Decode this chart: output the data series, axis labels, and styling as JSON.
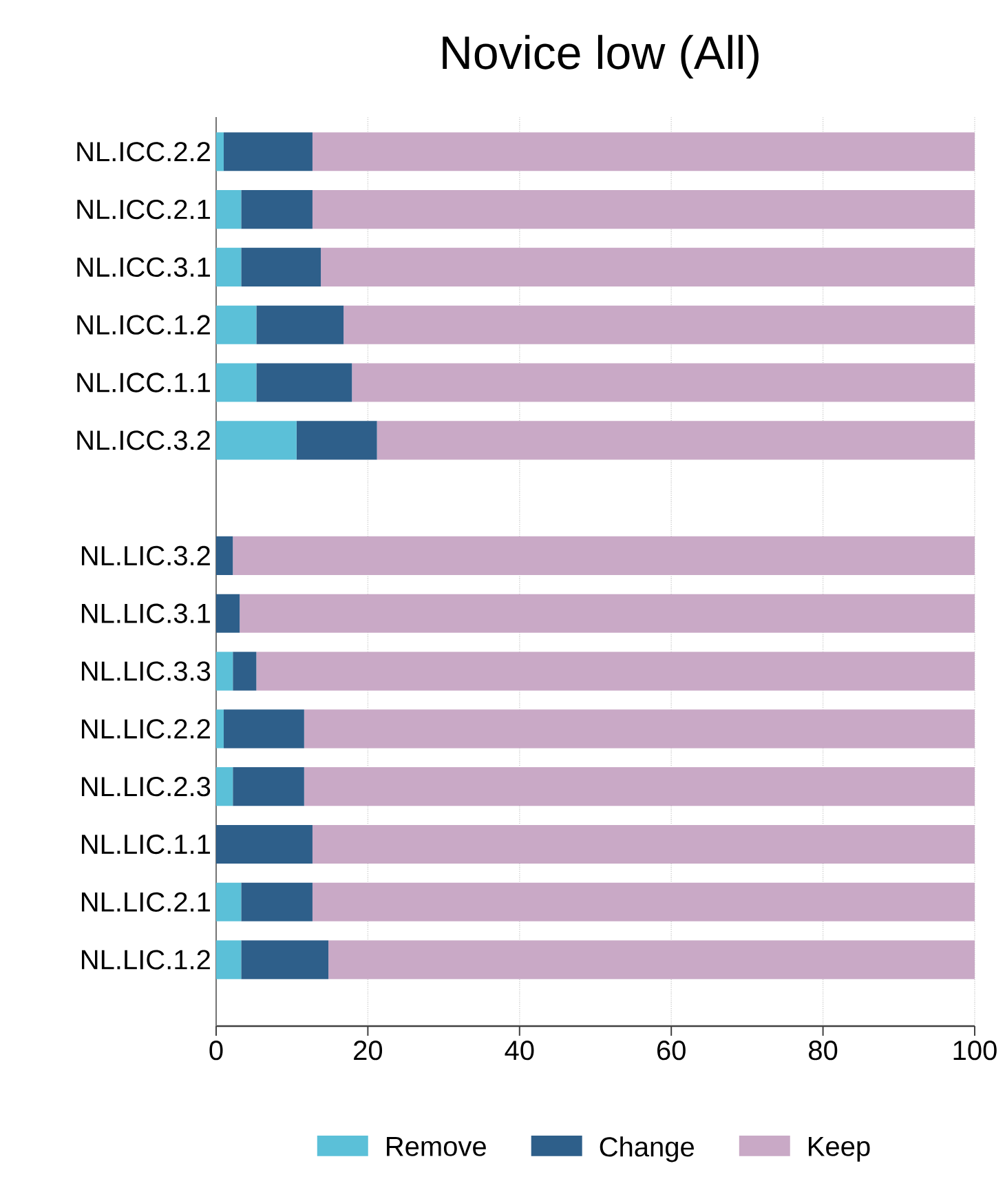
{
  "chart_data": {
    "type": "bar",
    "orientation": "horizontal",
    "stacked": true,
    "title": "Novice low (All)",
    "categories": [
      "NL.ICC.2.2",
      "NL.ICC.2.1",
      "NL.ICC.3.1",
      "NL.ICC.1.2",
      "NL.ICC.1.1",
      "NL.ICC.3.2",
      null,
      "NL.LIC.3.2",
      "NL.LIC.3.1",
      "NL.LIC.3.3",
      "NL.LIC.2.2",
      "NL.LIC.2.3",
      "NL.LIC.1.1",
      "NL.LIC.2.1",
      "NL.LIC.1.2"
    ],
    "series": [
      {
        "name": "Remove",
        "color": "#5bc0d8",
        "values": [
          1.0,
          3.3,
          3.3,
          5.3,
          5.3,
          10.6,
          null,
          0,
          0,
          2.2,
          1.0,
          2.2,
          0,
          3.3,
          3.3
        ]
      },
      {
        "name": "Change",
        "color": "#2e5f8a",
        "values": [
          11.7,
          9.4,
          10.5,
          11.5,
          12.6,
          10.6,
          null,
          2.2,
          3.1,
          3.1,
          10.6,
          9.4,
          12.7,
          9.4,
          11.5
        ]
      },
      {
        "name": "Keep",
        "color": "#c9a9c6",
        "values": [
          87.3,
          87.3,
          86.2,
          83.2,
          82.1,
          78.8,
          null,
          97.8,
          96.9,
          94.7,
          88.4,
          88.4,
          87.3,
          87.3,
          85.2
        ]
      }
    ],
    "xlim": [
      0,
      100
    ],
    "xticks": [
      0,
      20,
      40,
      60,
      80,
      100
    ],
    "grid": "x",
    "legend": "bottom"
  }
}
